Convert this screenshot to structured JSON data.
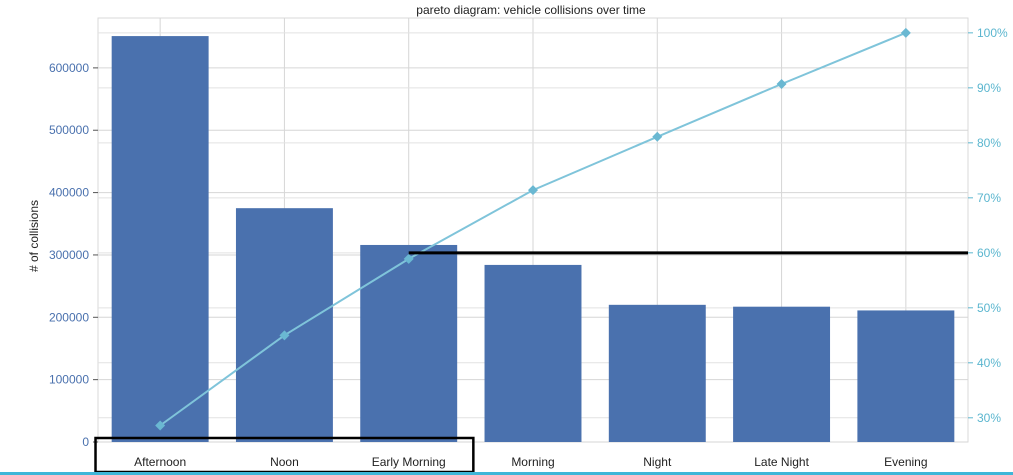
{
  "chart_data": {
    "type": "bar",
    "title": "pareto diagram: vehicle collisions over time",
    "ylabel": "# of collisions",
    "y2label": "",
    "categories": [
      "Afternoon",
      "Noon",
      "Early Morning",
      "Morning",
      "Night",
      "Late Night",
      "Evening"
    ],
    "series": [
      {
        "name": "",
        "kind": "bar",
        "axis": "left",
        "values": [
          651000,
          375000,
          316000,
          284000,
          220000,
          217000,
          211000
        ]
      },
      {
        "name": "",
        "kind": "line",
        "axis": "right",
        "values": [
          28.6,
          45.0,
          58.9,
          71.4,
          81.1,
          90.7,
          100.0
        ]
      }
    ],
    "ylim": [
      0,
      680000
    ],
    "yticks": [
      0,
      100000,
      200000,
      300000,
      400000,
      500000,
      600000
    ],
    "y2lim": [
      25.6,
      102.7
    ],
    "y2ticks": [
      "30%",
      "40%",
      "50%",
      "60%",
      "70%",
      "80%",
      "90%",
      "100%"
    ],
    "y2tick_values": [
      30,
      40,
      50,
      60,
      70,
      80,
      90,
      100
    ],
    "grid": true,
    "colors": {
      "bar": "#4a71ae",
      "line": "#7fc4da",
      "marker": "#6ab8d2",
      "left_tick": "#4a71ae",
      "right_tick": "#5bb6cf",
      "annotation": "#000000"
    },
    "annotations": [
      {
        "type": "hline",
        "axis": "right",
        "y": 60,
        "from_category_index": 2
      },
      {
        "type": "box",
        "around_categories": [
          0,
          2
        ]
      }
    ]
  }
}
